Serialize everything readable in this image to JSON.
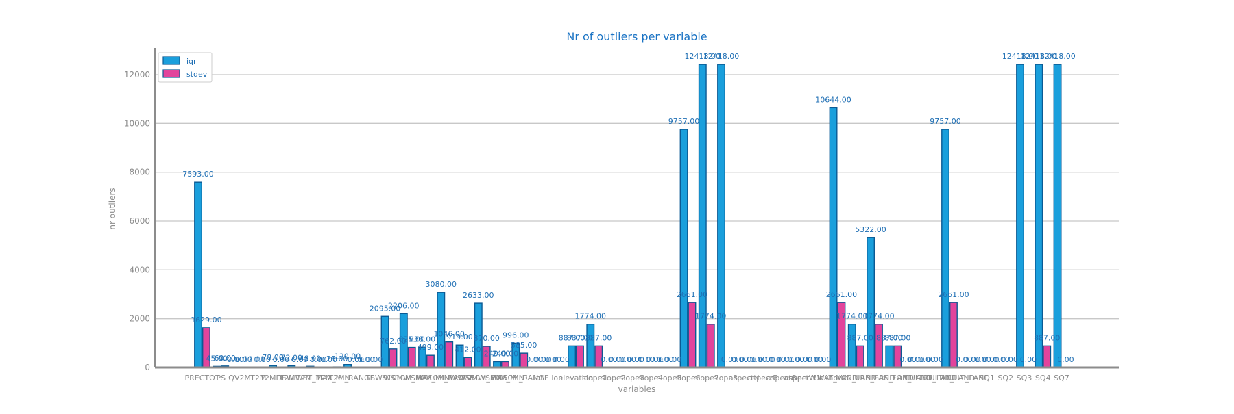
{
  "chart_data": {
    "type": "bar",
    "title": "Nr of outliers per variable",
    "xlabel": "variables",
    "ylabel": "nr outliers",
    "ylim": [
      0,
      13000
    ],
    "yticks": [
      0,
      2000,
      4000,
      6000,
      8000,
      10000,
      12000
    ],
    "grid": true,
    "legend_position": "top-left",
    "categories": [
      "PRECTOT",
      "PS",
      "QV2M",
      "T2M",
      "T2MDEW",
      "T2MWET",
      "T2M_MAX",
      "T2M_MIN",
      "T2M_RANGE",
      "TS",
      "WS10M",
      "WS10M_MAX",
      "WS10M_MIN",
      "WS10M_RANGE",
      "WS50M",
      "WS50M_MAX",
      "WS50M_MIN",
      "WS50M_RANGE",
      "lat",
      "lon",
      "elevation",
      "slope1",
      "slope2",
      "slope3",
      "slope4",
      "slope5",
      "slope6",
      "slope7",
      "slope8",
      "aspectN",
      "aspectE",
      "aspectS",
      "aspectW",
      "aspectUnknown",
      "WAT_LAND",
      "NVG_LAND",
      "URB_LAND",
      "GRS_LAND",
      "FOR_LAND",
      "CULTRF_LAND",
      "CULTIR_LAND",
      "CULT_LAND",
      "SQ1",
      "SQ2",
      "SQ3",
      "SQ4",
      "SQ7"
    ],
    "tick_labels": [
      "PRECTOT",
      "PS",
      "QV2M",
      "T2M",
      "T2MDEW",
      "T2MWET",
      "T2M_MAX",
      "T2M_MIN",
      "T2M_RANGE",
      "TS",
      "WS10M",
      "WS10M_MAX",
      "WS10M_MIN",
      "WS10M_RANGE",
      "WS50M",
      "WS50M_MAX",
      "WS50M_MIN",
      "WS50M_RANGE",
      "lat",
      "lon",
      "elevation",
      "slope1",
      "slope2",
      "slope3",
      "slope4",
      "slope5",
      "slope6",
      "slope7",
      "slope8",
      "aspectN",
      "aspectE",
      "aspectS",
      "aspectW",
      "aspectUnknown",
      "WAT_LAND",
      "NVG_LAND",
      "URB_LAND",
      "GRS_LAND",
      "FOR_LAND",
      "CULTRF_LAND",
      "CULTIR_LAND",
      "CULT_LAND",
      "SQ1",
      "SQ2",
      "SQ3",
      "SQ4",
      "SQ7"
    ],
    "series": [
      {
        "name": "iqr",
        "color": "#1a9fdc",
        "edge": "#0b5a94",
        "values": [
          7593,
          45,
          0,
          12,
          78,
          72,
          48,
          0,
          120,
          0,
          2095,
          2206,
          833,
          3080,
          919,
          2633,
          240,
          996,
          0,
          0,
          887,
          1774,
          0,
          0,
          0,
          0,
          9757,
          12418,
          12418,
          0,
          0,
          0,
          0,
          0,
          10644,
          1774,
          5322,
          887,
          0,
          0,
          9757,
          0,
          0,
          0,
          12418,
          12418,
          12418
        ],
        "labels": [
          "7593.00",
          "45.00",
          "0.00",
          "12.00",
          "78.00",
          "72.00",
          "48.00",
          "0.00",
          "120.00",
          "0.00",
          "2095.00",
          "2206.00",
          "833.00",
          "3080.00",
          "919.00",
          "2633.00",
          "240.00",
          "996.00",
          "0.00",
          "0.00",
          "887.00",
          "1774.00",
          "0.00",
          "0.00",
          "0.00",
          "0.00",
          "9757.00",
          "12418.00",
          "12418.00",
          "0.00",
          "0.00",
          "0.00",
          "0.00",
          "0.00",
          "10644.00",
          "1774.00",
          "5322.00",
          "887.00",
          "0.00",
          "0.00",
          "9757.00",
          "0.00",
          "0.00",
          "0.00",
          "12418.00",
          "12418.00",
          "12418.00"
        ]
      },
      {
        "name": "stdev",
        "color": "#e2449c",
        "edge": "#0b5a94",
        "values": [
          1629,
          60,
          0,
          0,
          0,
          0,
          0,
          25,
          0,
          0,
          762,
          825,
          499,
          1046,
          412,
          870,
          240,
          585,
          0,
          0,
          887,
          887,
          0,
          0,
          0,
          0,
          2661,
          1774,
          0,
          0,
          0,
          0,
          0,
          0,
          2661,
          887,
          1774,
          887,
          0,
          0,
          2661,
          0,
          0,
          0,
          0,
          887,
          0
        ],
        "labels": [
          "1629.00",
          "60.00",
          "0.00",
          "0.00",
          "0.00",
          "0.00",
          "0.00",
          "25.00",
          "0.00",
          "0.00",
          "762.00",
          "825.00",
          "499.00",
          "1046.00",
          "412.00",
          "870.00",
          "240.00",
          "585.00",
          "0.00",
          "0.00",
          "887.00",
          "887.00",
          "0.00",
          "0.00",
          "0.00",
          "0.00",
          "2661.00",
          "1774.00",
          "0.00",
          "0.00",
          "0.00",
          "0.00",
          "0.00",
          "0.00",
          "2661.00",
          "887.00",
          "1774.00",
          "887.00",
          "0.00",
          "0.00",
          "2661.00",
          "0.00",
          "0.00",
          "0.00",
          "0.00",
          "887.00",
          "0.00"
        ]
      }
    ]
  }
}
